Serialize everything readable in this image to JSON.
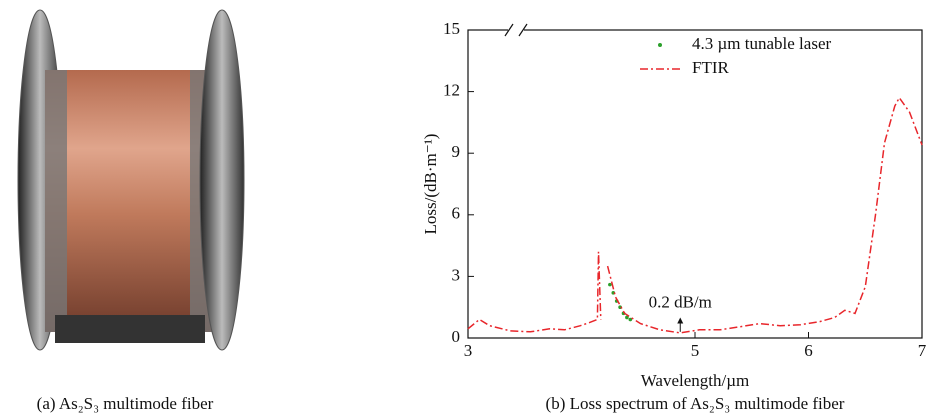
{
  "captions": [
    "(a) As₂S₃ multimode fiber",
    "(b) Loss spectrum of As₂S₃ multimode fiber"
  ],
  "chart_data": {
    "type": "line",
    "xlabel": "Wavelength/µm",
    "ylabel": "Loss/(dB·m⁻¹)",
    "xlim": [
      3,
      7
    ],
    "xticks": [
      3,
      5,
      6,
      7
    ],
    "ylim": [
      0,
      15
    ],
    "yticks": [
      0,
      3,
      6,
      9,
      12,
      15
    ],
    "legend": "upper right",
    "annotation": {
      "text": "0.2 dB/m",
      "x": 4.87,
      "y": 1.0
    },
    "series": [
      {
        "name": "4.3 µm tunable laser",
        "color": "#2ca02c",
        "mode": "markers",
        "x": [
          4.25,
          4.28,
          4.31,
          4.34,
          4.37,
          4.4,
          4.43
        ],
        "values": [
          2.6,
          2.2,
          1.8,
          1.5,
          1.2,
          1.0,
          0.9
        ]
      },
      {
        "name": "FTIR",
        "color": "#e8262b",
        "mode": "dash-dot",
        "x": [
          3.0,
          3.1,
          3.19,
          3.37,
          3.55,
          3.72,
          3.85,
          3.99,
          4.07,
          4.14,
          4.15,
          4.17,
          4.2,
          4.23,
          4.3,
          4.38,
          4.52,
          4.69,
          4.87,
          5.04,
          5.22,
          5.4,
          5.57,
          5.75,
          5.93,
          6.1,
          6.23,
          6.32,
          6.41,
          6.5,
          6.59,
          6.67,
          6.76,
          6.8,
          6.89,
          7.0
        ],
        "values": [
          0.45,
          0.9,
          0.6,
          0.35,
          0.3,
          0.45,
          0.4,
          0.6,
          0.75,
          0.9,
          4.2,
          0.9,
          null,
          3.5,
          2.0,
          1.2,
          0.7,
          0.4,
          0.25,
          0.4,
          0.4,
          0.55,
          0.7,
          0.6,
          0.65,
          0.8,
          1.0,
          1.35,
          1.2,
          2.5,
          6.0,
          9.5,
          11.3,
          11.7,
          11.0,
          9.4
        ]
      }
    ]
  }
}
